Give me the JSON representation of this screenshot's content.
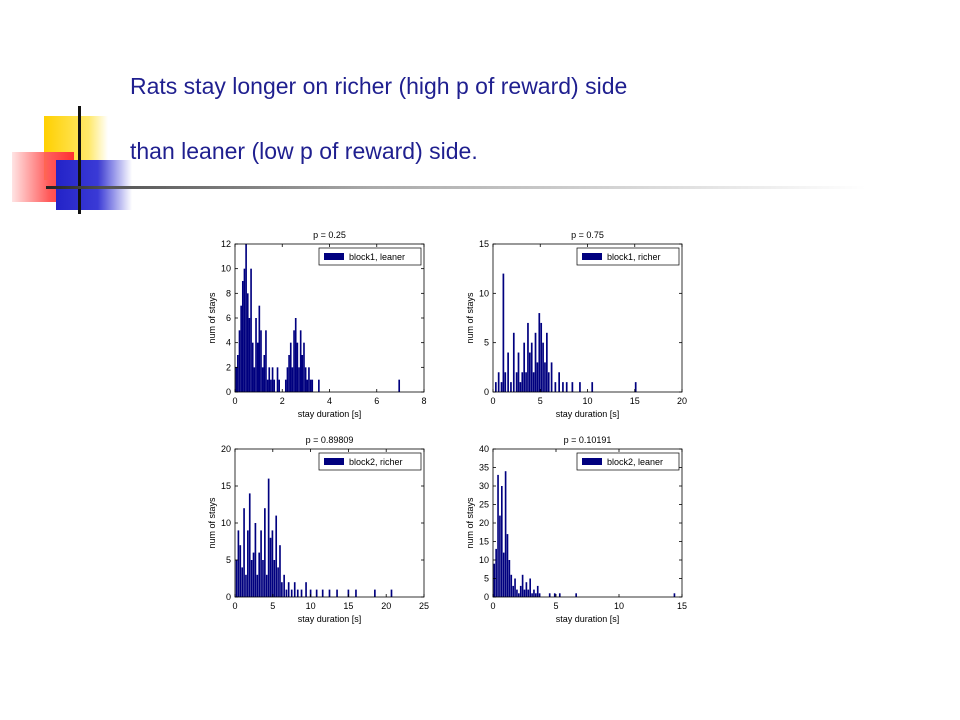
{
  "slide": {
    "title_line1": "Rats stay longer on richer (high p of reward) side",
    "title_line2": "than leaner (low p of reward) side."
  },
  "colors": {
    "title": "#1f1f8f",
    "bar": "#00007f",
    "deco_yellow": "#ffd000",
    "deco_red": "#ff3030",
    "deco_blue": "#2323c8"
  },
  "chart_data": [
    {
      "type": "bar",
      "title": "p = 0.25",
      "xlabel": "stay duration [s]",
      "ylabel": "num of stays",
      "xlim": [
        0,
        8
      ],
      "ylim": [
        0,
        12
      ],
      "xticks": [
        0,
        2,
        4,
        6,
        8
      ],
      "yticks": [
        0,
        2,
        4,
        6,
        8,
        10,
        12
      ],
      "legend": "block1, leaner",
      "legend_position": "top-right",
      "bin_width": 0.07,
      "x": [
        0.05,
        0.12,
        0.19,
        0.26,
        0.33,
        0.4,
        0.47,
        0.54,
        0.61,
        0.68,
        0.75,
        0.82,
        0.89,
        0.96,
        1.03,
        1.1,
        1.17,
        1.24,
        1.31,
        1.38,
        1.45,
        1.52,
        1.59,
        1.66,
        1.8,
        1.87,
        2.15,
        2.22,
        2.29,
        2.36,
        2.43,
        2.5,
        2.57,
        2.64,
        2.71,
        2.78,
        2.85,
        2.92,
        2.99,
        3.06,
        3.13,
        3.2,
        3.27,
        3.55,
        6.95
      ],
      "values": [
        2,
        3,
        5,
        7,
        9,
        10,
        12,
        8,
        6,
        10,
        4,
        2,
        6,
        4,
        7,
        5,
        2,
        3,
        5,
        1,
        2,
        1,
        2,
        1,
        2,
        1,
        1,
        2,
        3,
        4,
        2,
        5,
        6,
        4,
        2,
        5,
        3,
        4,
        2,
        1,
        2,
        1,
        1,
        1,
        1
      ]
    },
    {
      "type": "bar",
      "title": "p = 0.75",
      "xlabel": "stay duration [s]",
      "ylabel": "num of stays",
      "xlim": [
        0,
        20
      ],
      "ylim": [
        0,
        15
      ],
      "xticks": [
        0,
        5,
        10,
        15,
        20
      ],
      "yticks": [
        0,
        5,
        10,
        15
      ],
      "legend": "block1, richer",
      "legend_position": "top-right",
      "bin_width": 0.18,
      "x": [
        0.3,
        0.6,
        0.9,
        1.1,
        1.3,
        1.6,
        1.9,
        2.2,
        2.5,
        2.7,
        2.9,
        3.1,
        3.3,
        3.5,
        3.7,
        3.9,
        4.1,
        4.3,
        4.5,
        4.7,
        4.9,
        5.1,
        5.3,
        5.5,
        5.7,
        5.9,
        6.2,
        6.6,
        7.0,
        7.4,
        7.8,
        8.4,
        9.2,
        10.5,
        15.1
      ],
      "values": [
        1,
        2,
        1,
        12,
        2,
        4,
        1,
        6,
        2,
        4,
        1,
        2,
        5,
        2,
        7,
        4,
        5,
        2,
        6,
        3,
        8,
        7,
        5,
        3,
        6,
        2,
        3,
        1,
        2,
        1,
        1,
        1,
        1,
        1,
        1
      ]
    },
    {
      "type": "bar",
      "title": "p = 0.89809",
      "xlabel": "stay duration [s]",
      "ylabel": "num of stays",
      "xlim": [
        0,
        25
      ],
      "ylim": [
        0,
        20
      ],
      "xticks": [
        0,
        5,
        10,
        15,
        20,
        25
      ],
      "yticks": [
        0,
        5,
        10,
        15,
        20
      ],
      "legend": "block2, richer",
      "legend_position": "top-right",
      "bin_width": 0.22,
      "x": [
        0.2,
        0.45,
        0.7,
        0.95,
        1.2,
        1.45,
        1.7,
        1.95,
        2.2,
        2.45,
        2.7,
        2.95,
        3.2,
        3.45,
        3.7,
        3.95,
        4.2,
        4.45,
        4.7,
        4.95,
        5.2,
        5.45,
        5.7,
        5.95,
        6.2,
        6.5,
        6.8,
        7.1,
        7.5,
        7.9,
        8.3,
        8.8,
        9.4,
        10.0,
        10.8,
        11.6,
        12.5,
        13.5,
        15.0,
        16.0,
        18.5,
        20.7
      ],
      "values": [
        5,
        9,
        7,
        4,
        12,
        3,
        9,
        14,
        5,
        6,
        10,
        3,
        6,
        9,
        5,
        12,
        3,
        16,
        8,
        9,
        5,
        11,
        4,
        7,
        2,
        3,
        1,
        2,
        1,
        2,
        1,
        1,
        2,
        1,
        1,
        1,
        1,
        1,
        1,
        1,
        1,
        1
      ]
    },
    {
      "type": "bar",
      "title": "p = 0.10191",
      "xlabel": "stay duration [s]",
      "ylabel": "num of stays",
      "xlim": [
        0,
        15
      ],
      "ylim": [
        0,
        40
      ],
      "xticks": [
        0,
        5,
        10,
        15
      ],
      "yticks": [
        0,
        5,
        10,
        15,
        20,
        25,
        30,
        35,
        40
      ],
      "legend": "block2, leaner",
      "legend_position": "top-right",
      "bin_width": 0.13,
      "x": [
        0.1,
        0.25,
        0.4,
        0.55,
        0.7,
        0.85,
        1.0,
        1.15,
        1.3,
        1.45,
        1.6,
        1.75,
        1.9,
        2.05,
        2.2,
        2.35,
        2.5,
        2.65,
        2.8,
        2.95,
        3.1,
        3.25,
        3.4,
        3.55,
        3.7,
        4.5,
        4.9,
        5.3,
        6.6,
        14.4
      ],
      "values": [
        9,
        13,
        33,
        22,
        30,
        12,
        34,
        17,
        10,
        6,
        3,
        5,
        2,
        1,
        3,
        6,
        2,
        4,
        2,
        5,
        1,
        2,
        1,
        3,
        1,
        1,
        1,
        1,
        1,
        1
      ]
    }
  ]
}
